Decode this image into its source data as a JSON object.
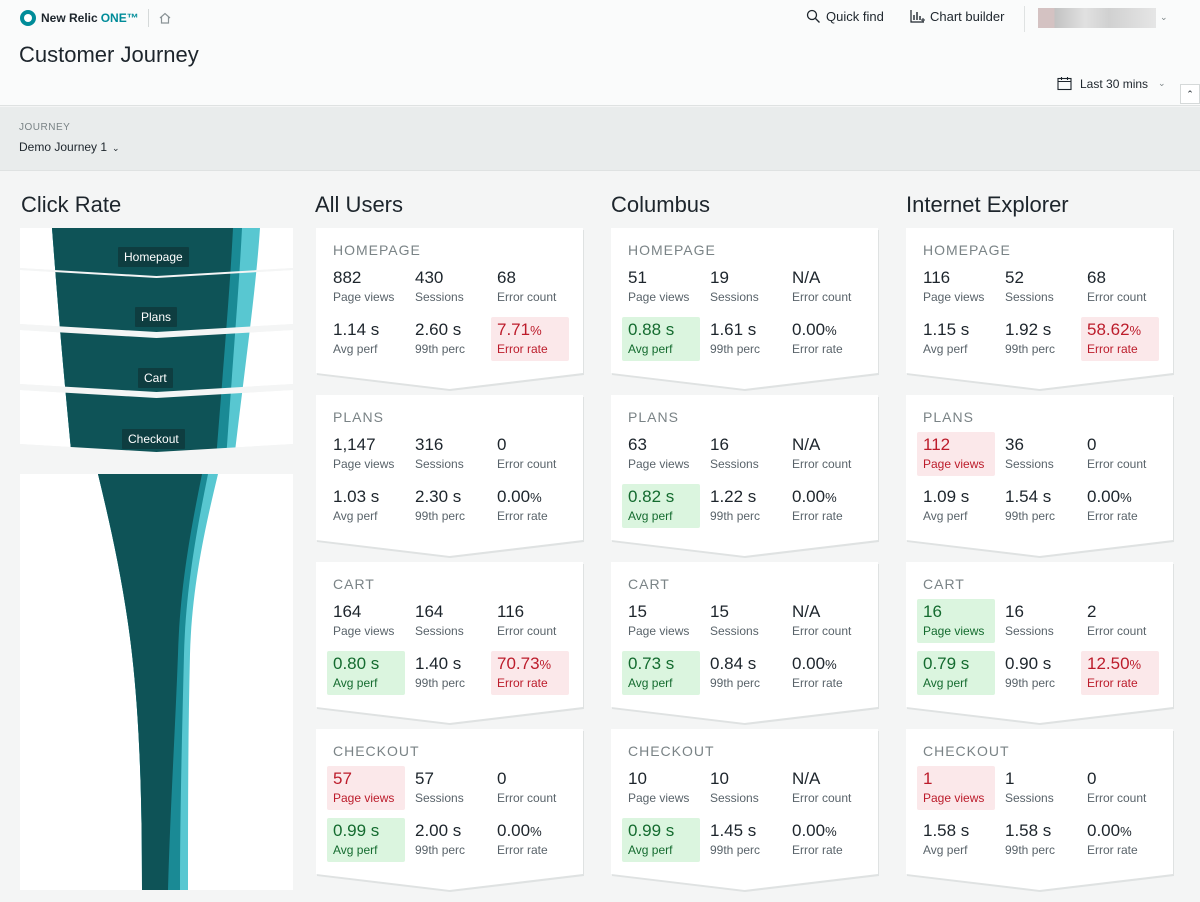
{
  "header": {
    "brand_name": "New Relic",
    "brand_one": "ONE™",
    "quick_find": "Quick find",
    "chart_builder": "Chart builder",
    "page_title": "Customer Journey",
    "time_range": "Last 30 mins"
  },
  "filter": {
    "label": "JOURNEY",
    "value": "Demo Journey 1"
  },
  "columns": {
    "click_rate": "Click Rate",
    "all_users": "All Users",
    "columbus": "Columbus",
    "internet_explorer": "Internet Explorer"
  },
  "funnel": {
    "steps": [
      "Homepage",
      "Plans",
      "Cart",
      "Checkout"
    ]
  },
  "labels": {
    "page_views": "Page views",
    "sessions": "Sessions",
    "error_count": "Error count",
    "avg_perf": "Avg perf",
    "p99": "99th perc",
    "error_rate": "Error rate"
  },
  "colors": {
    "brand_teal": "#008c99",
    "funnel_dark": "#0e5357",
    "funnel_mid": "#1a8a95",
    "funnel_light": "#58c7d1",
    "good_bg": "#dbf5df",
    "good_text": "#146b2f",
    "bad_bg": "#fbe8ea",
    "bad_text": "#bc1c2b"
  },
  "segments": {
    "all_users": {
      "homepage": {
        "title": "HOMEPAGE",
        "page_views": "882",
        "sessions": "430",
        "error_count": "68",
        "avg_perf": "1.14 s",
        "p99": "2.60 s",
        "error_rate_num": "7.71",
        "error_rate_unit": "%"
      },
      "plans": {
        "title": "PLANS",
        "page_views": "1,147",
        "sessions": "316",
        "error_count": "0",
        "avg_perf": "1.03 s",
        "p99": "2.30 s",
        "error_rate_num": "0.00",
        "error_rate_unit": "%"
      },
      "cart": {
        "title": "CART",
        "page_views": "164",
        "sessions": "164",
        "error_count": "116",
        "avg_perf": "0.80 s",
        "p99": "1.40 s",
        "error_rate_num": "70.73",
        "error_rate_unit": "%"
      },
      "checkout": {
        "title": "CHECKOUT",
        "page_views": "57",
        "sessions": "57",
        "error_count": "0",
        "avg_perf": "0.99 s",
        "p99": "2.00 s",
        "error_rate_num": "0.00",
        "error_rate_unit": "%"
      }
    },
    "columbus": {
      "homepage": {
        "title": "HOMEPAGE",
        "page_views": "51",
        "sessions": "19",
        "error_count": "N/A",
        "avg_perf": "0.88 s",
        "p99": "1.61 s",
        "error_rate_num": "0.00",
        "error_rate_unit": "%"
      },
      "plans": {
        "title": "PLANS",
        "page_views": "63",
        "sessions": "16",
        "error_count": "N/A",
        "avg_perf": "0.82 s",
        "p99": "1.22 s",
        "error_rate_num": "0.00",
        "error_rate_unit": "%"
      },
      "cart": {
        "title": "CART",
        "page_views": "15",
        "sessions": "15",
        "error_count": "N/A",
        "avg_perf": "0.73 s",
        "p99": "0.84 s",
        "error_rate_num": "0.00",
        "error_rate_unit": "%"
      },
      "checkout": {
        "title": "CHECKOUT",
        "page_views": "10",
        "sessions": "10",
        "error_count": "N/A",
        "avg_perf": "0.99 s",
        "p99": "1.45 s",
        "error_rate_num": "0.00",
        "error_rate_unit": "%"
      }
    },
    "internet_explorer": {
      "homepage": {
        "title": "HOMEPAGE",
        "page_views": "116",
        "sessions": "52",
        "error_count": "68",
        "avg_perf": "1.15 s",
        "p99": "1.92 s",
        "error_rate_num": "58.62",
        "error_rate_unit": "%"
      },
      "plans": {
        "title": "PLANS",
        "page_views": "112",
        "sessions": "36",
        "error_count": "0",
        "avg_perf": "1.09 s",
        "p99": "1.54 s",
        "error_rate_num": "0.00",
        "error_rate_unit": "%"
      },
      "cart": {
        "title": "CART",
        "page_views": "16",
        "sessions": "16",
        "error_count": "2",
        "avg_perf": "0.79 s",
        "p99": "0.90 s",
        "error_rate_num": "12.50",
        "error_rate_unit": "%"
      },
      "checkout": {
        "title": "CHECKOUT",
        "page_views": "1",
        "sessions": "1",
        "error_count": "0",
        "avg_perf": "1.58 s",
        "p99": "1.58 s",
        "error_rate_num": "0.00",
        "error_rate_unit": "%"
      }
    }
  }
}
